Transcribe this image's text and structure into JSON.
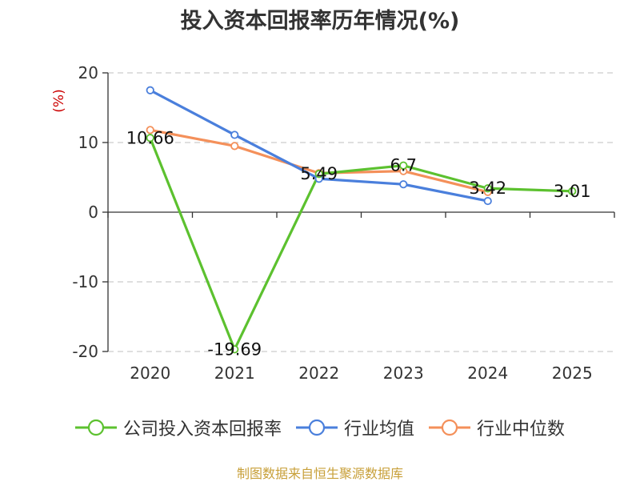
{
  "title": "投入资本回报率历年情况(%)",
  "source": "制图数据来自恒生聚源数据库",
  "colors": {
    "company": "#5cc12f",
    "industry_avg": "#4a7fdc",
    "industry_median": "#f4905a",
    "unit_label": "#cc0000",
    "axis": "#333333",
    "grid": "#cccccc",
    "source": "#c8a03a"
  },
  "chart_data": {
    "type": "line",
    "title": "投入资本回报率历年情况(%)",
    "ylabel": "(%)",
    "xlabel": "",
    "categories": [
      "2020",
      "2021",
      "2022",
      "2023",
      "2024",
      "2025"
    ],
    "ylim": [
      -20,
      20
    ],
    "yticks": [
      20,
      10,
      0,
      -10,
      -20
    ],
    "ytick_labels": [
      "20",
      "10",
      "0",
      "-10",
      "-20"
    ],
    "grid": true,
    "legend_position": "bottom",
    "series": [
      {
        "name": "公司投入资本回报率",
        "key": "company",
        "values": [
          10.66,
          -19.69,
          5.49,
          6.7,
          3.42,
          3.01
        ],
        "labels": [
          "10.66",
          "-19.69",
          "5.49",
          "6.7",
          "3.42",
          "3.01"
        ]
      },
      {
        "name": "行业均值",
        "key": "industry_avg",
        "values": [
          17.5,
          11.1,
          4.8,
          4.0,
          1.6,
          null
        ]
      },
      {
        "name": "行业中位数",
        "key": "industry_median",
        "values": [
          11.8,
          9.5,
          5.6,
          5.9,
          2.9,
          null
        ]
      }
    ]
  }
}
